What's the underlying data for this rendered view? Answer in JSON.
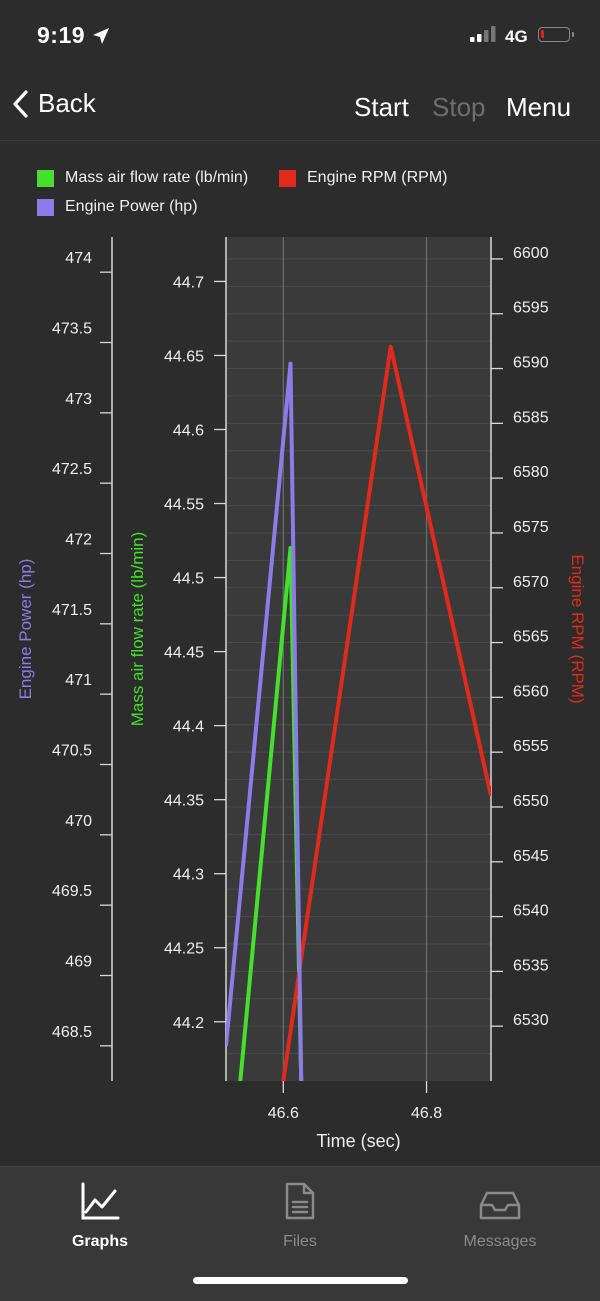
{
  "status": {
    "time": "9:19",
    "network": "4G",
    "icons": [
      "location-arrow-icon",
      "signal-bars-icon",
      "battery-icon"
    ]
  },
  "nav": {
    "back_label": "Back",
    "start_label": "Start",
    "stop_label": "Stop",
    "menu_label": "Menu",
    "back_icon": "chevron-left-icon"
  },
  "colors": {
    "background": "#2c2c2c",
    "plot_bg": "#3a3a3a",
    "maf": "#44e02c",
    "rpm": "#e02a1c",
    "power": "#8b7ce8"
  },
  "tabs": [
    {
      "label": "Graphs",
      "icon": "line-graph-icon",
      "active": true
    },
    {
      "label": "Files",
      "icon": "file-icon",
      "active": false
    },
    {
      "label": "Messages",
      "icon": "inbox-tray-icon",
      "active": false
    }
  ],
  "chart_data": {
    "type": "line",
    "xlabel": "Time (sec)",
    "xlim": [
      46.52,
      46.89
    ],
    "x_ticks": [
      "46.6",
      "46.8"
    ],
    "grid": true,
    "legend_position": "top",
    "series": [
      {
        "name": "Mass air flow rate (lb/min)",
        "axis": "maf",
        "color": "#44e02c",
        "points": [
          [
            46.54,
            44.16
          ],
          [
            46.61,
            44.52
          ],
          [
            46.625,
            44.16
          ]
        ]
      },
      {
        "name": "Engine RPM (RPM)",
        "axis": "rpm",
        "color": "#e02a1c",
        "points": [
          [
            46.6,
            6525
          ],
          [
            46.75,
            6592
          ],
          [
            46.89,
            6551
          ]
        ]
      },
      {
        "name": "Engine Power (hp)",
        "axis": "power",
        "color": "#8b7ce8",
        "points": [
          [
            46.52,
            468.5
          ],
          [
            46.61,
            473.35
          ],
          [
            46.625,
            468.25
          ]
        ]
      }
    ],
    "axes": {
      "power": {
        "label": "Engine Power (hp)",
        "ylim": [
          468.25,
          474.25
        ],
        "ticks": [
          "468.5",
          "469",
          "469.5",
          "470",
          "470.5",
          "471",
          "471.5",
          "472",
          "472.5",
          "473",
          "473.5",
          "474"
        ]
      },
      "maf": {
        "label": "Mass air flow rate (lb/min)",
        "ylim": [
          44.16,
          44.73
        ],
        "ticks": [
          "44.2",
          "44.25",
          "44.3",
          "44.35",
          "44.4",
          "44.45",
          "44.5",
          "44.55",
          "44.6",
          "44.65",
          "44.7"
        ]
      },
      "rpm": {
        "label": "Engine RPM (RPM)",
        "ylim": [
          6525,
          6602
        ],
        "ticks": [
          "6530",
          "6535",
          "6540",
          "6545",
          "6550",
          "6555",
          "6560",
          "6565",
          "6570",
          "6575",
          "6580",
          "6585",
          "6590",
          "6595",
          "6600"
        ]
      }
    }
  }
}
